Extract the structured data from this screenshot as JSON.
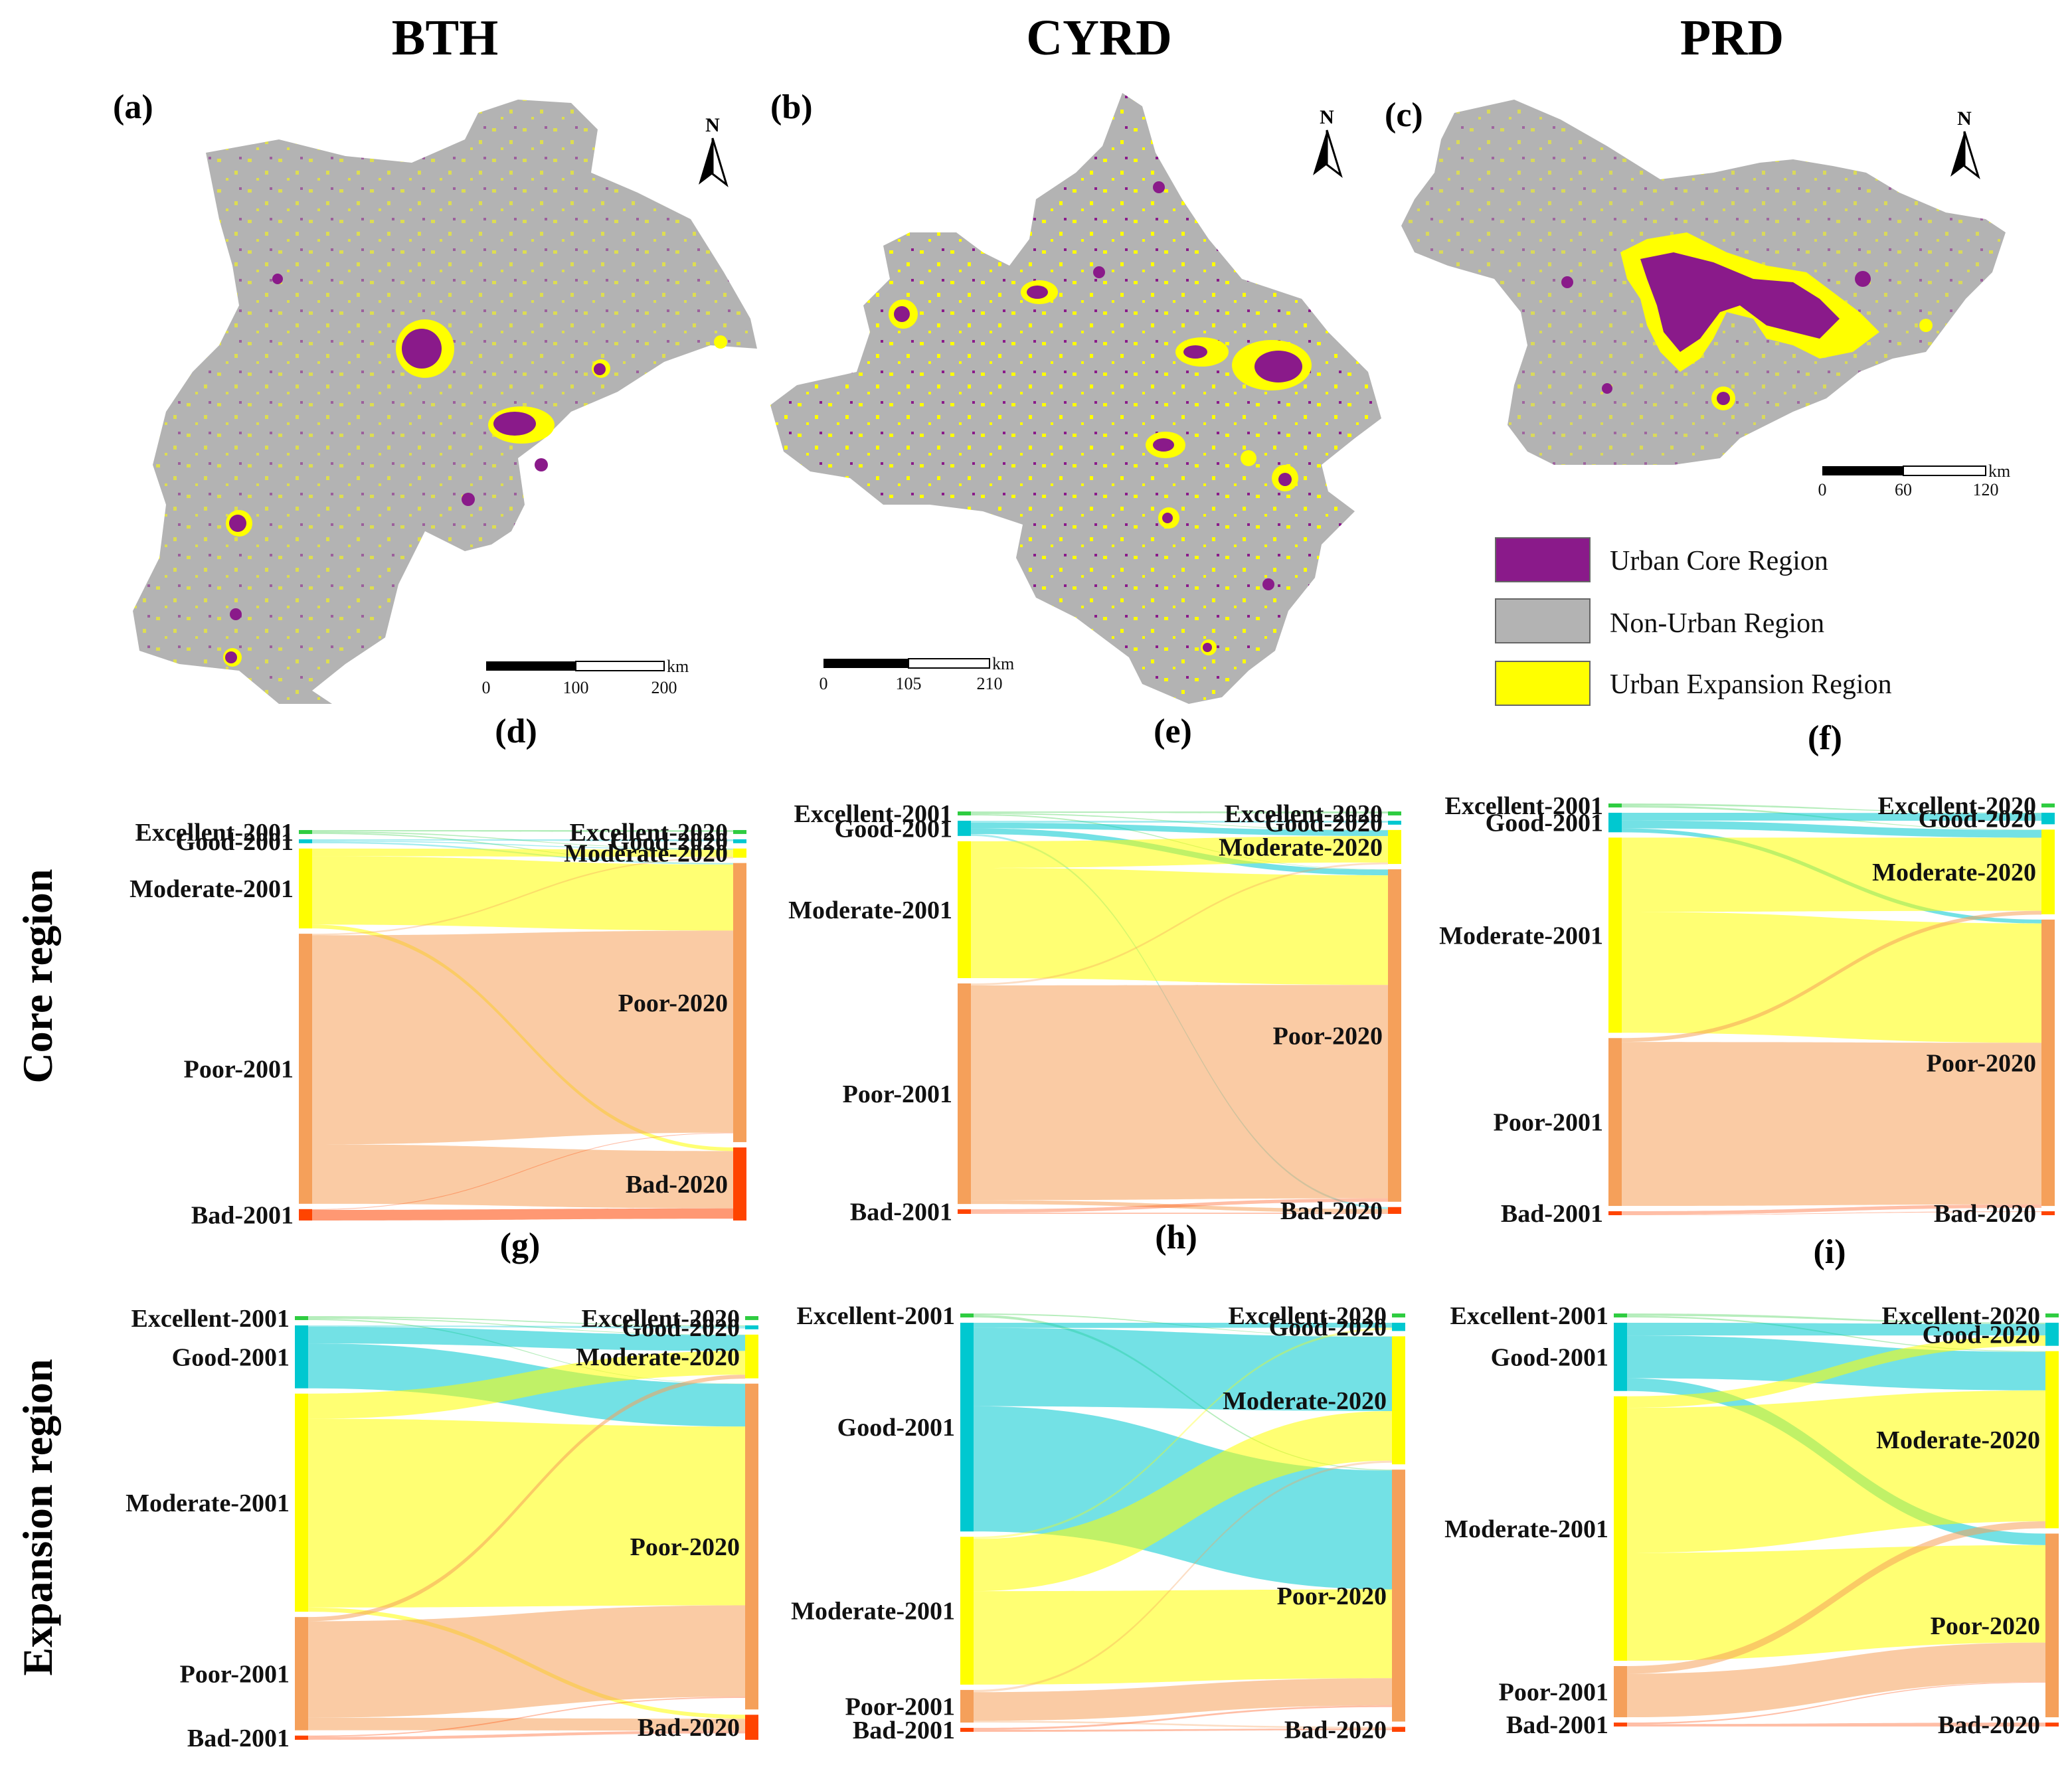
{
  "regions": [
    "BTH",
    "CYRD",
    "PRD"
  ],
  "row_titles": [
    "Core region",
    "Expansion region"
  ],
  "map_panels": [
    "(a)",
    "(b)",
    "(c)"
  ],
  "sankey_panels": [
    "(d)",
    "(e)",
    "(f)",
    "(g)",
    "(h)",
    "(i)"
  ],
  "north_label": "N",
  "scale_unit": "km",
  "scales": [
    {
      "ticks": [
        "0",
        "100",
        "200"
      ]
    },
    {
      "ticks": [
        "0",
        "105",
        "210"
      ]
    },
    {
      "ticks": [
        "0",
        "60",
        "120"
      ]
    }
  ],
  "legend": [
    {
      "label": "Urban Core Region",
      "color": "#8a1a8a"
    },
    {
      "label": "Non-Urban Region",
      "color": "#b3b3b3"
    },
    {
      "label": "Urban Expansion Region",
      "color": "#ffff00"
    }
  ],
  "class_colors": {
    "Excellent": "#2ecc40",
    "Good": "#00c8d0",
    "Moderate": "#ffff00",
    "Poor": "#f5a05a",
    "Bad": "#ff4400"
  },
  "chart_data": {
    "type": "sankey",
    "classes": [
      "Excellent",
      "Good",
      "Moderate",
      "Poor",
      "Bad"
    ],
    "panels": [
      {
        "panel": "(d)",
        "region": "BTH",
        "zone": "Core region",
        "left_labels": [
          "Excellent-2001",
          "Good-2001",
          "Moderate-2001",
          "Poor-2001",
          "Bad-2001"
        ],
        "right_labels": [
          "Excellent-2020",
          "Good-2020",
          "Moderate-2020",
          "Poor-2020",
          "Bad-2020"
        ],
        "left": [
          0.3,
          0.7,
          21,
          71,
          3
        ],
        "right": [
          0.2,
          0.4,
          2.5,
          76,
          19.9
        ],
        "flows": [
          [
            0,
            0,
            0.1
          ],
          [
            0,
            2,
            0.1
          ],
          [
            0,
            3,
            0.1
          ],
          [
            1,
            1,
            0.2
          ],
          [
            1,
            2,
            0.2
          ],
          [
            1,
            3,
            0.3
          ],
          [
            2,
            2,
            2
          ],
          [
            2,
            3,
            18
          ],
          [
            2,
            4,
            1
          ],
          [
            3,
            2,
            0.4
          ],
          [
            3,
            3,
            55
          ],
          [
            3,
            4,
            15.6
          ],
          [
            4,
            3,
            0.2
          ],
          [
            4,
            4,
            2.8
          ]
        ]
      },
      {
        "panel": "(e)",
        "region": "CYRD",
        "zone": "Core region",
        "left_labels": [
          "Excellent-2001",
          "Good-2001",
          "Moderate-2001",
          "Poor-2001",
          "Bad-2001"
        ],
        "right_labels": [
          "Excellent-2020",
          "Good-2020",
          "Moderate-2020",
          "Poor-2020",
          "Bad-2020"
        ],
        "left": [
          0.3,
          4,
          36,
          58,
          1.2
        ],
        "right": [
          0.2,
          1,
          9,
          88,
          1.8
        ],
        "flows": [
          [
            0,
            0,
            0.1
          ],
          [
            0,
            2,
            0.1
          ],
          [
            0,
            3,
            0.1
          ],
          [
            1,
            1,
            0.5
          ],
          [
            1,
            2,
            1.5
          ],
          [
            1,
            3,
            1.5
          ],
          [
            1,
            4,
            0.5
          ],
          [
            2,
            2,
            7
          ],
          [
            2,
            3,
            29
          ],
          [
            3,
            2,
            0.5
          ],
          [
            3,
            3,
            56.5
          ],
          [
            3,
            4,
            1
          ],
          [
            4,
            3,
            0.9
          ],
          [
            4,
            4,
            0.3
          ]
        ]
      },
      {
        "panel": "(f)",
        "region": "PRD",
        "zone": "Core region",
        "left_labels": [
          "Excellent-2001",
          "Good-2001",
          "Moderate-2001",
          "Poor-2001",
          "Bad-2001"
        ],
        "right_labels": [
          "Excellent-2020",
          "Good-2020",
          "Moderate-2020",
          "Poor-2020",
          "Bad-2020"
        ],
        "left": [
          0.2,
          5,
          50,
          43,
          1
        ],
        "right": [
          0.1,
          3,
          22,
          74.4,
          0.5
        ],
        "flows": [
          [
            0,
            1,
            0.1
          ],
          [
            0,
            2,
            0.1
          ],
          [
            1,
            1,
            2
          ],
          [
            1,
            2,
            2
          ],
          [
            1,
            3,
            1
          ],
          [
            2,
            2,
            19
          ],
          [
            2,
            3,
            31
          ],
          [
            3,
            2,
            1
          ],
          [
            3,
            3,
            42
          ],
          [
            4,
            3,
            0.9
          ],
          [
            4,
            4,
            0.1
          ]
        ]
      },
      {
        "panel": "(g)",
        "region": "BTH",
        "zone": "Expansion region",
        "left_labels": [
          "Excellent-2001",
          "Good-2001",
          "Moderate-2001",
          "Poor-2001",
          "Bad-2001"
        ],
        "right_labels": [
          "Excellent-2020",
          "Good-2020",
          "Moderate-2020",
          "Poor-2020",
          "Bad-2020"
        ],
        "left": [
          0.3,
          15,
          52,
          27,
          1
        ],
        "right": [
          0.2,
          0.5,
          11,
          82,
          6.3
        ],
        "flows": [
          [
            0,
            1,
            0.1
          ],
          [
            0,
            2,
            0.1
          ],
          [
            0,
            3,
            0.1
          ],
          [
            1,
            1,
            0.3
          ],
          [
            1,
            2,
            4
          ],
          [
            1,
            3,
            10.7
          ],
          [
            2,
            2,
            6
          ],
          [
            2,
            3,
            45
          ],
          [
            2,
            4,
            1
          ],
          [
            3,
            2,
            1
          ],
          [
            3,
            3,
            23
          ],
          [
            3,
            4,
            3
          ],
          [
            4,
            3,
            0.3
          ],
          [
            4,
            4,
            0.7
          ]
        ]
      },
      {
        "panel": "(h)",
        "region": "CYRD",
        "zone": "Expansion region",
        "left_labels": [
          "Excellent-2001",
          "Good-2001",
          "Moderate-2001",
          "Poor-2001",
          "Bad-2001"
        ],
        "right_labels": [
          "Excellent-2020",
          "Good-2020",
          "Moderate-2020",
          "Poor-2020",
          "Bad-2020"
        ],
        "left": [
          0.3,
          48,
          34,
          7.5,
          0.8
        ],
        "right": [
          0.2,
          2,
          31,
          61,
          1.2
        ],
        "flows": [
          [
            0,
            2,
            0.1
          ],
          [
            0,
            3,
            0.2
          ],
          [
            1,
            1,
            1.2
          ],
          [
            1,
            2,
            18
          ],
          [
            1,
            3,
            28.8
          ],
          [
            2,
            1,
            0.5
          ],
          [
            2,
            2,
            12
          ],
          [
            2,
            3,
            21.5
          ],
          [
            3,
            2,
            0.5
          ],
          [
            3,
            3,
            6.6
          ],
          [
            3,
            4,
            0.4
          ],
          [
            4,
            3,
            0.4
          ],
          [
            4,
            4,
            0.4
          ]
        ]
      },
      {
        "panel": "(i)",
        "region": "PRD",
        "zone": "Expansion region",
        "left_labels": [
          "Excellent-2001",
          "Good-2001",
          "Moderate-2001",
          "Poor-2001",
          "Bad-2001"
        ],
        "right_labels": [
          "Excellent-2020",
          "Good-2020",
          "Moderate-2020",
          "Poor-2020",
          "Bad-2020"
        ],
        "left": [
          0.5,
          16,
          62,
          12,
          0.5
        ],
        "right": [
          0.3,
          6,
          46,
          47.7,
          0.3
        ],
        "flows": [
          [
            0,
            1,
            0.3
          ],
          [
            0,
            2,
            0.2
          ],
          [
            1,
            1,
            3
          ],
          [
            1,
            2,
            10
          ],
          [
            1,
            3,
            3
          ],
          [
            2,
            1,
            2.7
          ],
          [
            2,
            2,
            34
          ],
          [
            2,
            3,
            25.3
          ],
          [
            3,
            2,
            1.8
          ],
          [
            3,
            3,
            10.2
          ],
          [
            4,
            3,
            0.2
          ],
          [
            4,
            4,
            0.3
          ]
        ]
      }
    ]
  }
}
